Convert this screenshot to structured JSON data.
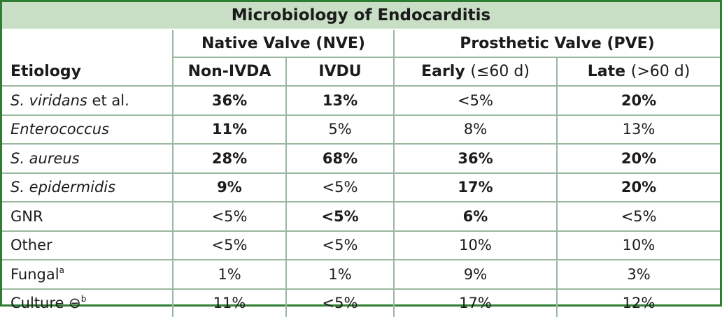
{
  "title": "Microbiology of Endocarditis",
  "groups": {
    "native": "Native Valve (NVE)",
    "prosthetic": "Prosthetic Valve (PVE)"
  },
  "columns": {
    "etiology": "Etiology",
    "non_ivda": "Non-IVDA",
    "ivdu": "IVDU",
    "early": "Early",
    "early_qual": "(≤60 d)",
    "late": "Late",
    "late_qual": "(>60 d)"
  },
  "rows": [
    {
      "label": "S. viridans",
      "label_suffix": " et al.",
      "values": [
        "36%",
        "13%",
        "<5%",
        "20%"
      ]
    },
    {
      "label": "Enterococcus",
      "values": [
        "11%",
        "5%",
        "8%",
        "13%"
      ]
    },
    {
      "label": "S. aureus",
      "values": [
        "28%",
        "68%",
        "36%",
        "20%"
      ]
    },
    {
      "label": "S. epidermidis",
      "values": [
        "9%",
        "<5%",
        "17%",
        "20%"
      ]
    },
    {
      "label": "GNR",
      "values": [
        "<5%",
        "<5%",
        "6%",
        "<5%"
      ]
    },
    {
      "label": "Other",
      "values": [
        "<5%",
        "<5%",
        "10%",
        "10%"
      ]
    },
    {
      "label": "Fungal",
      "label_sup": "a",
      "values": [
        "1%",
        "1%",
        "9%",
        "3%"
      ]
    },
    {
      "label": "Culture ⊖",
      "label_sup": "b",
      "values": [
        "11%",
        "<5%",
        "17%",
        "12%"
      ]
    }
  ],
  "colors": {
    "border": "#2e7d32",
    "title_bg": "#c8dfc5",
    "grid": "#9ab8a0"
  }
}
